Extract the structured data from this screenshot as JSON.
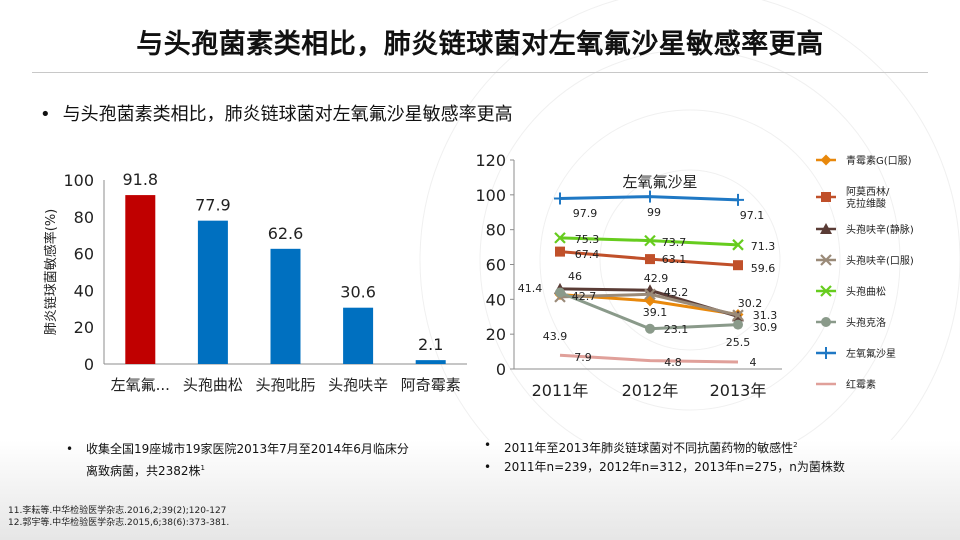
{
  "title": "与头孢菌素类相比，肺炎链球菌对左氧氟沙星敏感率更高",
  "bullet": "与头孢菌素类相比，肺炎链球菌对左氧氟沙星敏感率更高",
  "left_note": {
    "line1": "收集全国19座城市19家医院2013年7月至2014年6月临床分",
    "line2": "离致病菌，共2382株",
    "sup": "1"
  },
  "right_notes": {
    "line1": "2011年至2013年肺炎链球菌对不同抗菌药物的敏感性",
    "line1_sup": "2",
    "line2": "2011年n=239，2012年n=312，2013年n=275，n为菌株数"
  },
  "refs": [
    "11.李耘等.中华检验医学杂志.2016,2;39(2);120-127",
    "12.郭宇等.中华检验医学杂志.2015,6;38(6):373-381."
  ],
  "colors": {
    "red_bar": "#c00000",
    "blue_bar": "#0070c0"
  },
  "chart_data": [
    {
      "type": "bar",
      "categories": [
        "左氧氟...",
        "头孢曲松",
        "头孢吡肟",
        "头孢呋辛",
        "阿奇霉素"
      ],
      "values": [
        91.8,
        77.9,
        62.6,
        30.6,
        2.1
      ],
      "value_labels": [
        "91.8",
        "77.9",
        "62.6",
        "30.6",
        "2.1"
      ],
      "bar_colors": [
        "#c00000",
        "#0070c0",
        "#0070c0",
        "#0070c0",
        "#0070c0"
      ],
      "ylabel": "肺炎链球菌敏感率(%)",
      "ylim": [
        0,
        100
      ],
      "yticks": [
        "0",
        "20",
        "40",
        "60",
        "80",
        "100"
      ],
      "grid": false
    },
    {
      "type": "line",
      "x": [
        "2011年",
        "2012年",
        "2013年"
      ],
      "ylim": [
        0,
        120
      ],
      "yticks": [
        "0",
        "20",
        "40",
        "60",
        "80",
        "100",
        "120"
      ],
      "annotation": "左氧氟沙星",
      "legend_position": "right",
      "series": [
        {
          "name": "青霉素G(口服)",
          "color": "#e8880c",
          "marker": "diamond",
          "values": [
            42.7,
            39.1,
            31.3
          ]
        },
        {
          "name": "阿莫西林/\n克拉维酸",
          "color": "#c0502a",
          "marker": "square",
          "values": [
            67.4,
            63.1,
            59.6
          ]
        },
        {
          "name": "头孢呋辛(静脉)",
          "color": "#5a3c36",
          "marker": "triangle",
          "values": [
            46,
            45.2,
            30.2
          ]
        },
        {
          "name": "头孢呋辛(口服)",
          "color": "#9a8a78",
          "marker": "x",
          "values": [
            41.4,
            42.9,
            30.9
          ]
        },
        {
          "name": "头孢曲松",
          "color": "#66cc1e",
          "marker": "x",
          "values": [
            75.3,
            73.7,
            71.3
          ]
        },
        {
          "name": "头孢克洛",
          "color": "#8a9a8a",
          "marker": "circle",
          "values": [
            43.9,
            23.1,
            25.5
          ]
        },
        {
          "name": "左氧氟沙星",
          "color": "#1f78c4",
          "marker": "plus",
          "values": [
            97.9,
            99,
            97.1
          ]
        },
        {
          "name": "红霉素",
          "color": "#e0a09a",
          "marker": "none",
          "values": [
            7.9,
            4.8,
            4
          ]
        }
      ],
      "data_labels": [
        "41.4",
        "46",
        "43.9",
        "42.7",
        "75.3",
        "67.4",
        "97.9",
        "73.7",
        "63.1",
        "42.9",
        "45.2",
        "39.1",
        "23.1",
        "99",
        "71.3",
        "59.6",
        "30.2",
        "31.3",
        "30.9",
        "25.5",
        "97.1",
        "7.9",
        "4.8",
        "4"
      ]
    }
  ]
}
